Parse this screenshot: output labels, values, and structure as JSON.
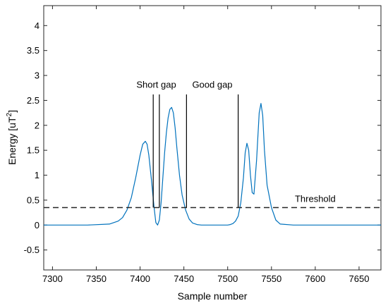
{
  "chart_data": {
    "type": "line",
    "xlabel": "Sample number",
    "ylabel": {
      "prefix": "Energy [uT",
      "superscript": "2",
      "suffix": "]"
    },
    "xlim": [
      7290,
      7675
    ],
    "ylim": [
      -0.9,
      4.4
    ],
    "xticks": [
      7300,
      7350,
      7400,
      7450,
      7500,
      7550,
      7600,
      7650
    ],
    "yticks": [
      -0.5,
      0,
      0.5,
      1,
      1.5,
      2,
      2.5,
      3,
      3.5,
      4
    ],
    "ytick_labels": [
      "-0.5",
      "0",
      "0.5",
      "1",
      "1.5",
      "2",
      "2.5",
      "3",
      "3.5",
      "4"
    ],
    "grid": false,
    "series": [
      {
        "color": "#0072BD",
        "x": [
          7290,
          7340,
          7365,
          7375,
          7380,
          7385,
          7390,
          7395,
          7400,
          7403,
          7406,
          7408,
          7410,
          7413,
          7416,
          7418,
          7420,
          7422,
          7424,
          7426,
          7428,
          7430,
          7432,
          7434,
          7436,
          7438,
          7440,
          7442,
          7445,
          7448,
          7452,
          7456,
          7460,
          7465,
          7470,
          7480,
          7490,
          7500,
          7503,
          7506,
          7509,
          7512,
          7515,
          7518,
          7520,
          7522,
          7524,
          7526,
          7528,
          7530,
          7533,
          7536,
          7538,
          7540,
          7542,
          7545,
          7550,
          7555,
          7560,
          7575,
          7600,
          7675
        ],
        "y": [
          0.0,
          0.0,
          0.02,
          0.08,
          0.15,
          0.3,
          0.55,
          0.95,
          1.4,
          1.62,
          1.68,
          1.62,
          1.4,
          0.9,
          0.35,
          0.05,
          0.0,
          0.1,
          0.45,
          0.95,
          1.45,
          1.85,
          2.15,
          2.32,
          2.36,
          2.25,
          1.95,
          1.55,
          1.0,
          0.6,
          0.3,
          0.12,
          0.04,
          0.01,
          0.0,
          0.0,
          0.0,
          0.0,
          0.01,
          0.03,
          0.08,
          0.18,
          0.45,
          0.95,
          1.45,
          1.64,
          1.5,
          1.0,
          0.65,
          0.62,
          1.3,
          2.25,
          2.44,
          2.2,
          1.5,
          0.8,
          0.35,
          0.1,
          0.02,
          0.0,
          0.0,
          0.0
        ]
      }
    ],
    "threshold": {
      "label": "Threshold",
      "y": 0.35,
      "style": "dashed"
    },
    "markers": [
      7415,
      7422,
      7453,
      7512
    ],
    "annotations": [
      {
        "text": "Short gap",
        "x": 7418.5,
        "y": 2.75
      },
      {
        "text": "Good gap",
        "x": 7482.5,
        "y": 2.75
      }
    ]
  }
}
